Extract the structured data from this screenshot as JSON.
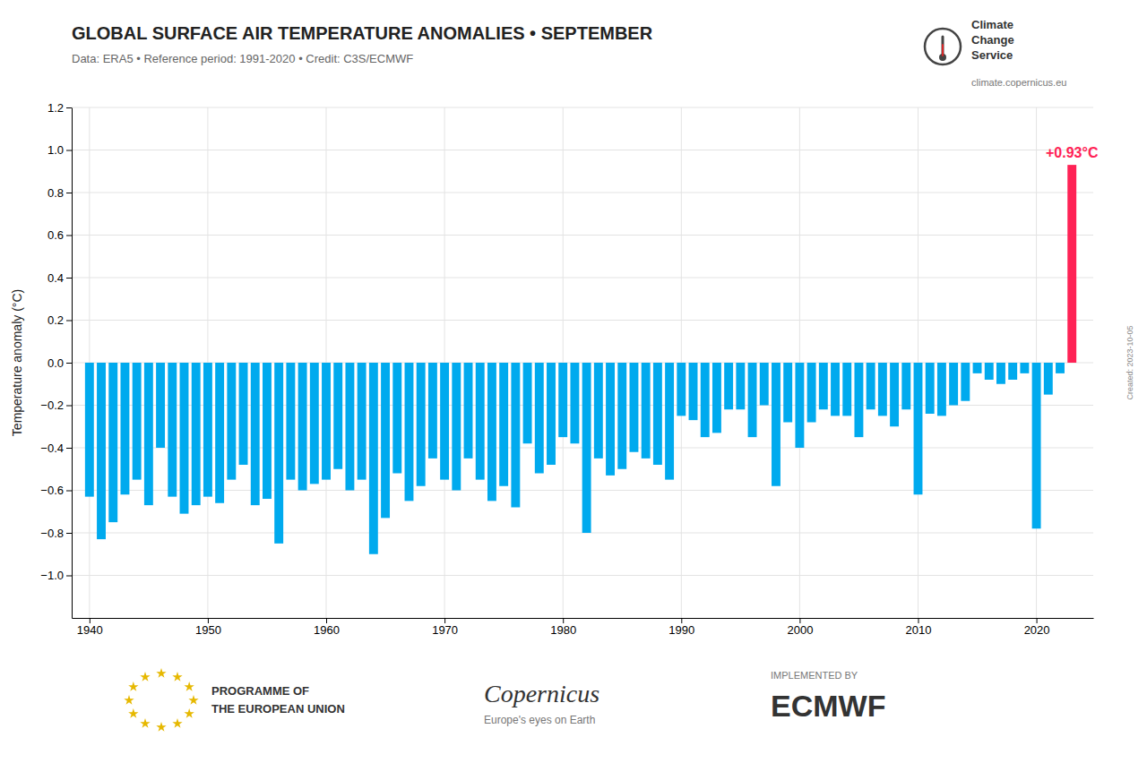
{
  "chart_data": {
    "type": "bar",
    "title": "GLOBAL SURFACE AIR TEMPERATURE ANOMALIES • SEPTEMBER",
    "subtitle": "Data: ERA5 • Reference period: 1991-2020 • Credit: C3S/ECMWF",
    "ylabel": "Temperature anomaly (°C)",
    "x": [
      1940,
      1941,
      1942,
      1943,
      1944,
      1945,
      1946,
      1947,
      1948,
      1949,
      1950,
      1951,
      1952,
      1953,
      1954,
      1955,
      1956,
      1957,
      1958,
      1959,
      1960,
      1961,
      1962,
      1963,
      1964,
      1965,
      1966,
      1967,
      1968,
      1969,
      1970,
      1971,
      1972,
      1973,
      1974,
      1975,
      1976,
      1977,
      1978,
      1979,
      1980,
      1981,
      1982,
      1983,
      1984,
      1985,
      1986,
      1987,
      1988,
      1989,
      1990,
      1991,
      1992,
      1993,
      1994,
      1995,
      1996,
      1997,
      1998,
      1999,
      2000,
      2001,
      2002,
      2003,
      2004,
      2005,
      2006,
      2007,
      2008,
      2009,
      2010,
      2011,
      2012,
      2013,
      2014,
      2015,
      2016,
      2017,
      2018,
      2019,
      2020,
      2021,
      2022,
      2023
    ],
    "values": [
      -0.63,
      -0.83,
      -0.75,
      -0.62,
      -0.55,
      -0.67,
      -0.4,
      -0.63,
      -0.71,
      -0.67,
      -0.63,
      -0.66,
      -0.55,
      -0.48,
      -0.67,
      -0.64,
      -0.85,
      -0.55,
      -0.6,
      -0.57,
      -0.55,
      -0.5,
      -0.6,
      -0.55,
      -0.9,
      -0.73,
      -0.52,
      -0.65,
      -0.58,
      -0.45,
      -0.55,
      -0.6,
      -0.45,
      -0.55,
      -0.65,
      -0.58,
      -0.68,
      -0.38,
      -0.52,
      -0.48,
      -0.35,
      -0.38,
      -0.8,
      -0.45,
      -0.53,
      -0.5,
      -0.42,
      -0.45,
      -0.48,
      -0.55,
      -0.25,
      -0.27,
      -0.35,
      -0.33,
      -0.22,
      -0.22,
      -0.35,
      -0.2,
      -0.58,
      -0.28,
      -0.4,
      -0.28,
      -0.22,
      -0.25,
      -0.25,
      -0.35,
      -0.22,
      -0.25,
      -0.3,
      -0.22,
      -0.62,
      -0.24,
      -0.25,
      -0.2,
      -0.18,
      -0.05,
      -0.08,
      -0.1,
      -0.08,
      -0.05,
      -0.78,
      -0.15,
      -0.05,
      0.93
    ],
    "colors": [
      "#00aaee",
      "#00aaee",
      "#00aaee",
      "#00aaee",
      "#00aaee",
      "#00aaee",
      "#00aaee",
      "#00aaee",
      "#00aaee",
      "#00aaee",
      "#00aaee",
      "#00aaee",
      "#00aaee",
      "#00aaee",
      "#00aaee",
      "#00aaee",
      "#00aaee",
      "#00aaee",
      "#00aaee",
      "#00aaee",
      "#00aaee",
      "#00aaee",
      "#00aaee",
      "#00aaee",
      "#00aaee",
      "#00aaee",
      "#00aaee",
      "#00aaee",
      "#00aaee",
      "#00aaee",
      "#00aaee",
      "#00aaee",
      "#00aaee",
      "#00aaee",
      "#00aaee",
      "#00aaee",
      "#00aaee",
      "#00aaee",
      "#00aaee",
      "#00aaee",
      "#00aaee",
      "#00aaee",
      "#00aaee",
      "#00aaee",
      "#00aaee",
      "#00aaee",
      "#00aaee",
      "#00aaee",
      "#00aaee",
      "#00aaee",
      "#00aaee",
      "#00aaee",
      "#00aaee",
      "#00aaee",
      "#00aaee",
      "#00aaee",
      "#00aaee",
      "#00aaee",
      "#00aaee",
      "#00aaee",
      "#00aaee",
      "#00aaee",
      "#00aaee",
      "#00aaee",
      "#00aaee",
      "#00aaee",
      "#00aaee",
      "#00aaee",
      "#00aaee",
      "#00aaee",
      "#00aaee",
      "#00aaee",
      "#00aaee",
      "#00aaee",
      "#00aaee",
      "#00aaee",
      "#00aaee",
      "#00aaee",
      "#00aaee",
      "#00aaee",
      "#00aaee",
      "#00aaee",
      "#00aaee",
      "#ff2255"
    ],
    "xlim": [
      1938.5,
      2024.8
    ],
    "ylim": [
      -1.2,
      1.2
    ],
    "xticks": [
      1940,
      1950,
      1960,
      1970,
      1980,
      1990,
      2000,
      2010,
      2020
    ],
    "yticks": [
      {
        "value": -1.0,
        "label": "−1.0"
      },
      {
        "value": -0.8,
        "label": "−0.8"
      },
      {
        "value": -0.6,
        "label": "−0.6"
      },
      {
        "value": -0.4,
        "label": "−0.4"
      },
      {
        "value": -0.2,
        "label": "−0.2"
      },
      {
        "value": 0.0,
        "label": "0.0"
      },
      {
        "value": 0.2,
        "label": "0.2"
      },
      {
        "value": 0.4,
        "label": "0.4"
      },
      {
        "value": 0.6,
        "label": "0.6"
      },
      {
        "value": 0.8,
        "label": "0.8"
      },
      {
        "value": 1.0,
        "label": "1.0"
      },
      {
        "value": 1.2,
        "label": "1.2"
      }
    ],
    "grid": true,
    "annotations": [
      "+0.93°C",
      "Climate",
      "Change",
      "Service",
      "climate.copernicus.eu",
      "PROGRAMME OF",
      "THE EUROPEAN UNION",
      "Copernicus",
      "Europe's eyes on Earth",
      "IMPLEMENTED BY",
      "ECMWF",
      "Created: 2023-10-05"
    ]
  }
}
